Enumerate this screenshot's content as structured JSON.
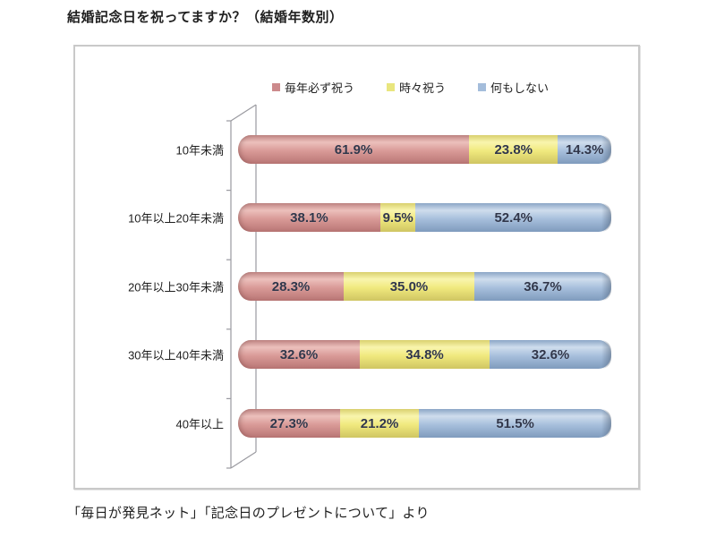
{
  "title": "結婚記念日を祝ってますか？（結婚年数別）",
  "source": "「毎日が発見ネット」「記念日のプレゼントについて」より",
  "legend": [
    {
      "label": "毎年必ず祝う",
      "color": "#cc8a8c"
    },
    {
      "label": "時々祝う",
      "color": "#e9e67e"
    },
    {
      "label": "何もしない",
      "color": "#a4bddb"
    }
  ],
  "chart_data": {
    "type": "bar",
    "subtype": "stacked-horizontal-100pct",
    "style": "3d-cylinder",
    "title": "結婚記念日を祝ってますか？（結婚年数別）",
    "categories": [
      "10年未満",
      "10年以上20年未満",
      "20年以上30年未満",
      "30年以上40年未満",
      "40年以上"
    ],
    "series": [
      {
        "name": "毎年必ず祝う",
        "color": "#d59694",
        "values": [
          61.9,
          38.1,
          28.3,
          32.6,
          27.3
        ]
      },
      {
        "name": "時々祝う",
        "color": "#eee87f",
        "values": [
          23.8,
          9.5,
          35.0,
          34.8,
          21.2
        ]
      },
      {
        "name": "何もしない",
        "color": "#a3bcd9",
        "values": [
          14.3,
          52.4,
          36.7,
          32.6,
          51.5
        ]
      }
    ],
    "value_labels": [
      [
        "61.9%",
        "23.8%",
        "14.3%"
      ],
      [
        "38.1%",
        "9.5%",
        "52.4%"
      ],
      [
        "28.3%",
        "35.0%",
        "36.7%"
      ],
      [
        "32.6%",
        "34.8%",
        "32.6%"
      ],
      [
        "27.3%",
        "21.2%",
        "51.5%"
      ]
    ],
    "xlim": [
      0,
      100
    ],
    "grid": false,
    "legend_position": "top",
    "source": "「毎日が発見ネット」「記念日のプレゼントについて」より"
  }
}
